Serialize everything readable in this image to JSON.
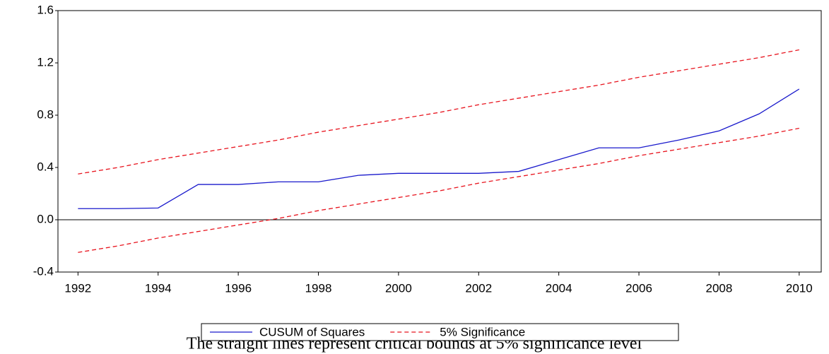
{
  "chart_data": {
    "type": "line",
    "caption": "The straight lines represent critical bounds at 5% significance level",
    "x": [
      1992,
      1993,
      1994,
      1995,
      1996,
      1997,
      1998,
      1999,
      2000,
      2001,
      2002,
      2003,
      2004,
      2005,
      2006,
      2007,
      2008,
      2009,
      2010
    ],
    "series": [
      {
        "name": "CUSUM of Squares",
        "color": "#1a1acc",
        "dash": false,
        "values": [
          0.085,
          0.085,
          0.09,
          0.27,
          0.27,
          0.29,
          0.29,
          0.34,
          0.355,
          0.355,
          0.355,
          0.37,
          0.46,
          0.55,
          0.55,
          0.61,
          0.68,
          0.81,
          1.0
        ]
      },
      {
        "name": "5% Significance",
        "color": "#e8141e",
        "dash": true,
        "values": [
          0.35,
          0.4,
          0.46,
          0.51,
          0.56,
          0.61,
          0.67,
          0.72,
          0.77,
          0.82,
          0.88,
          0.93,
          0.98,
          1.03,
          1.09,
          1.14,
          1.19,
          1.24,
          1.3
        ],
        "lower": [
          -0.25,
          -0.2,
          -0.14,
          -0.09,
          -0.04,
          0.01,
          0.07,
          0.12,
          0.17,
          0.22,
          0.28,
          0.33,
          0.38,
          0.43,
          0.49,
          0.54,
          0.59,
          0.64,
          0.7
        ]
      }
    ],
    "xlim": [
      1991.5,
      2010.55
    ],
    "xticks": [
      1992,
      1994,
      1996,
      1998,
      2000,
      2002,
      2004,
      2006,
      2008,
      2010
    ],
    "ylim": [
      -0.4,
      1.6
    ],
    "yticks": [
      -0.4,
      {
        "value": 0,
        "label": "0.0"
      },
      0.4,
      0.8,
      1.2,
      1.6
    ],
    "hline": 0,
    "grid": false,
    "legend": "bottom"
  }
}
